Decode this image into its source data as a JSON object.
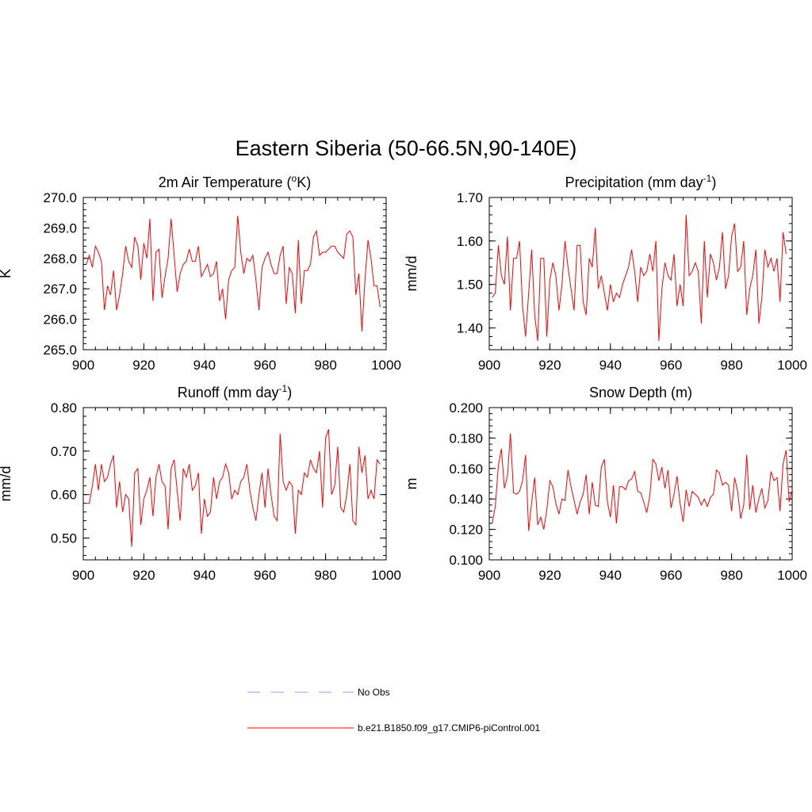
{
  "title": "Eastern Siberia (50-66.5N,90-140E)",
  "colors": {
    "series": "#ff0000",
    "obs": "#9999ff",
    "axis": "#000000",
    "background": "#ffffff"
  },
  "chart_data": [
    {
      "type": "line",
      "title": "2m Air Temperature (",
      "title_sup": "o",
      "title_tail": "K)",
      "title_sup_placement": "before_tail",
      "ylabel": "K",
      "xlim": [
        900,
        1000
      ],
      "ylim": [
        265.0,
        270.0
      ],
      "xticks": [
        "900",
        "920",
        "940",
        "960",
        "980",
        "1000"
      ],
      "yticks": [
        "265.0",
        "266.0",
        "267.0",
        "268.0",
        "269.0",
        "270.0"
      ],
      "series": [
        {
          "name": "b.e21.B1850.f09_g17.CMIP6-piControl.001",
          "x_start": 901,
          "values": [
            267.8,
            268.1,
            267.7,
            268.4,
            268.2,
            267.9,
            266.3,
            267.1,
            266.8,
            267.6,
            266.3,
            266.8,
            267.5,
            268.4,
            267.9,
            267.7,
            268.7,
            268.4,
            267.3,
            268.5,
            268.0,
            269.3,
            266.6,
            268.2,
            268.3,
            266.7,
            267.4,
            268.0,
            269.3,
            268.1,
            266.9,
            267.5,
            267.8,
            267.9,
            268.3,
            267.9,
            267.9,
            268.4,
            267.4,
            267.6,
            267.8,
            267.4,
            267.5,
            267.9,
            266.6,
            267.0,
            266.0,
            267.3,
            267.6,
            267.7,
            269.4,
            268.2,
            267.5,
            268.0,
            267.9,
            268.1,
            267.3,
            266.3,
            267.7,
            268.0,
            268.2,
            267.8,
            267.5,
            267.5,
            268.1,
            268.4,
            266.5,
            267.7,
            267.5,
            266.2,
            268.6,
            266.5,
            267.6,
            267.6,
            267.8,
            268.7,
            268.9,
            268.1,
            268.2,
            268.2,
            268.3,
            268.4,
            268.4,
            268.2,
            268.1,
            268.0,
            268.8,
            268.9,
            268.7,
            266.8,
            267.5,
            265.6,
            267.3,
            268.6,
            268.0,
            267.1,
            267.1,
            266.4
          ]
        }
      ]
    },
    {
      "type": "line",
      "title": "Precipitation (mm day",
      "title_sup": "-1",
      "title_tail": ")",
      "title_sup_placement": "before_tail",
      "ylabel": "mm/d",
      "xlim": [
        900,
        1000
      ],
      "ylim": [
        1.35,
        1.7
      ],
      "xticks": [
        "900",
        "920",
        "940",
        "960",
        "980",
        "1000"
      ],
      "yticks": [
        "1.40",
        "1.50",
        "1.60",
        "1.70"
      ],
      "series": [
        {
          "name": "b.e21.B1850.f09_g17.CMIP6-piControl.001",
          "x_start": 901,
          "values": [
            1.47,
            1.48,
            1.59,
            1.52,
            1.5,
            1.61,
            1.44,
            1.56,
            1.56,
            1.6,
            1.45,
            1.38,
            1.48,
            1.58,
            1.43,
            1.37,
            1.56,
            1.56,
            1.38,
            1.51,
            1.55,
            1.52,
            1.44,
            1.5,
            1.6,
            1.54,
            1.49,
            1.44,
            1.59,
            1.59,
            1.46,
            1.43,
            1.56,
            1.54,
            1.63,
            1.49,
            1.52,
            1.48,
            1.44,
            1.5,
            1.46,
            1.48,
            1.47,
            1.5,
            1.52,
            1.54,
            1.58,
            1.53,
            1.46,
            1.54,
            1.52,
            1.53,
            1.57,
            1.53,
            1.6,
            1.37,
            1.49,
            1.55,
            1.52,
            1.51,
            1.57,
            1.45,
            1.5,
            1.45,
            1.66,
            1.52,
            1.53,
            1.55,
            1.53,
            1.41,
            1.6,
            1.47,
            1.57,
            1.55,
            1.51,
            1.54,
            1.62,
            1.49,
            1.52,
            1.61,
            1.64,
            1.53,
            1.54,
            1.6,
            1.43,
            1.49,
            1.52,
            1.58,
            1.41,
            1.47,
            1.58,
            1.54,
            1.56,
            1.53,
            1.56,
            1.46,
            1.62,
            1.57
          ]
        }
      ]
    },
    {
      "type": "line",
      "title": "Runoff (mm day",
      "title_sup": "-1",
      "title_tail": ")",
      "title_sup_placement": "before_tail",
      "ylabel": "mm/d",
      "xlim": [
        900,
        1000
      ],
      "ylim": [
        0.45,
        0.8
      ],
      "xticks": [
        "900",
        "920",
        "940",
        "960",
        "980",
        "1000"
      ],
      "yticks": [
        "0.50",
        "0.60",
        "0.70",
        "0.80"
      ],
      "series": [
        {
          "name": "b.e21.B1850.f09_g17.CMIP6-piControl.001",
          "x_start": 901,
          "values": [
            0.58,
            0.58,
            0.62,
            0.67,
            0.61,
            0.67,
            0.63,
            0.64,
            0.67,
            0.69,
            0.57,
            0.63,
            0.56,
            0.6,
            0.59,
            0.48,
            0.65,
            0.66,
            0.53,
            0.59,
            0.61,
            0.64,
            0.55,
            0.64,
            0.67,
            0.63,
            0.62,
            0.52,
            0.66,
            0.68,
            0.61,
            0.54,
            0.66,
            0.64,
            0.67,
            0.61,
            0.62,
            0.65,
            0.51,
            0.59,
            0.55,
            0.56,
            0.64,
            0.59,
            0.63,
            0.64,
            0.67,
            0.65,
            0.59,
            0.61,
            0.6,
            0.63,
            0.64,
            0.67,
            0.61,
            0.57,
            0.54,
            0.6,
            0.65,
            0.57,
            0.66,
            0.6,
            0.55,
            0.54,
            0.74,
            0.63,
            0.61,
            0.63,
            0.62,
            0.51,
            0.61,
            0.6,
            0.65,
            0.64,
            0.68,
            0.66,
            0.65,
            0.7,
            0.57,
            0.73,
            0.75,
            0.6,
            0.62,
            0.71,
            0.57,
            0.56,
            0.6,
            0.67,
            0.54,
            0.53,
            0.71,
            0.65,
            0.69,
            0.59,
            0.61,
            0.59,
            0.68,
            0.67
          ]
        }
      ]
    },
    {
      "type": "line",
      "title": "Snow Depth (m)",
      "ylabel": "m",
      "xlim": [
        900,
        1000
      ],
      "ylim": [
        0.1,
        0.2
      ],
      "xticks": [
        "900",
        "920",
        "940",
        "960",
        "980",
        "1000"
      ],
      "yticks": [
        "0.100",
        "0.120",
        "0.140",
        "0.160",
        "0.180",
        "0.200"
      ],
      "series": [
        {
          "name": "b.e21.B1850.f09_g17.CMIP6-piControl.001",
          "x_start": 901,
          "values": [
            0.124,
            0.135,
            0.162,
            0.173,
            0.147,
            0.155,
            0.183,
            0.144,
            0.143,
            0.145,
            0.152,
            0.169,
            0.119,
            0.138,
            0.154,
            0.123,
            0.128,
            0.12,
            0.133,
            0.152,
            0.148,
            0.137,
            0.13,
            0.14,
            0.139,
            0.159,
            0.148,
            0.139,
            0.13,
            0.138,
            0.143,
            0.156,
            0.13,
            0.151,
            0.136,
            0.135,
            0.161,
            0.166,
            0.138,
            0.128,
            0.149,
            0.124,
            0.148,
            0.148,
            0.146,
            0.152,
            0.153,
            0.158,
            0.145,
            0.144,
            0.138,
            0.131,
            0.142,
            0.166,
            0.163,
            0.152,
            0.161,
            0.147,
            0.159,
            0.134,
            0.143,
            0.155,
            0.137,
            0.125,
            0.146,
            0.135,
            0.145,
            0.143,
            0.141,
            0.136,
            0.14,
            0.135,
            0.141,
            0.143,
            0.159,
            0.157,
            0.149,
            0.151,
            0.149,
            0.132,
            0.154,
            0.145,
            0.127,
            0.136,
            0.169,
            0.133,
            0.149,
            0.131,
            0.14,
            0.147,
            0.134,
            0.139,
            0.158,
            0.152,
            0.154,
            0.132,
            0.163,
            0.172,
            0.138,
            0.146
          ]
        }
      ]
    }
  ],
  "legend": [
    {
      "label": "No Obs",
      "style": "dashed",
      "color": "#9999ff"
    },
    {
      "label": "b.e21.B1850.f09_g17.CMIP6-piControl.001",
      "style": "solid",
      "color": "#ff0000"
    }
  ]
}
